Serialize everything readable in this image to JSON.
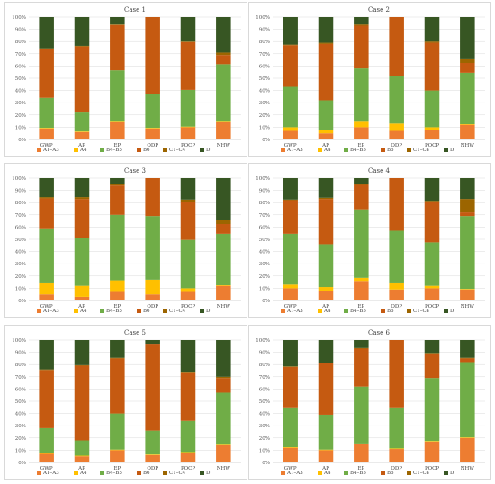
{
  "legend": [
    "A1–A3",
    "A4",
    "B4–B5",
    "B6",
    "C1–C4",
    "D"
  ],
  "colors": [
    "#ED7D31",
    "#FFC000",
    "#70AD47",
    "#C55A11",
    "#9C6500",
    "#375623"
  ],
  "chart_data": [
    {
      "type": "bar",
      "stacked": true,
      "percent": true,
      "title": "Case 1",
      "categories": [
        "GWP",
        "AP",
        "EP",
        "ODP",
        "POCP",
        "NHW"
      ],
      "ylim": [
        0,
        100
      ],
      "yticks": [
        "0%",
        "10%",
        "20%",
        "30%",
        "40%",
        "50%",
        "60%",
        "70%",
        "80%",
        "90%",
        "100%"
      ],
      "grid": true,
      "legend_position": "bottom",
      "series": [
        {
          "name": "A1–A3",
          "values": [
            9,
            6,
            14,
            9,
            10,
            14
          ]
        },
        {
          "name": "A4",
          "values": [
            0.5,
            0.5,
            0.5,
            0.5,
            0.5,
            0.5
          ]
        },
        {
          "name": "B4–B5",
          "values": [
            24.5,
            15.5,
            42,
            27.5,
            30,
            47
          ]
        },
        {
          "name": "B6",
          "values": [
            40,
            54,
            37,
            63,
            39,
            7.5
          ]
        },
        {
          "name": "C1–C4",
          "values": [
            0.5,
            0.5,
            0.5,
            0,
            0.5,
            2
          ]
        },
        {
          "name": "D",
          "values": [
            25.5,
            23.5,
            6,
            0,
            20,
            29
          ]
        }
      ]
    },
    {
      "type": "bar",
      "stacked": true,
      "percent": true,
      "title": "Case 2",
      "categories": [
        "GWP",
        "AP",
        "EP",
        "ODP",
        "POCP",
        "NHW"
      ],
      "ylim": [
        0,
        100
      ],
      "yticks": [
        "0%",
        "10%",
        "20%",
        "30%",
        "40%",
        "50%",
        "60%",
        "70%",
        "80%",
        "90%",
        "100%"
      ],
      "grid": true,
      "legend_position": "bottom",
      "series": [
        {
          "name": "A1–A3",
          "values": [
            7,
            5,
            10,
            7,
            8,
            12
          ]
        },
        {
          "name": "A4",
          "values": [
            3,
            2.5,
            4.5,
            6,
            2,
            0.5
          ]
        },
        {
          "name": "B4–B5",
          "values": [
            33,
            24.5,
            43.5,
            39,
            30,
            42
          ]
        },
        {
          "name": "B6",
          "values": [
            34,
            46,
            35,
            48,
            39,
            8
          ]
        },
        {
          "name": "C1–C4",
          "values": [
            0.5,
            1,
            1,
            0,
            1,
            3
          ]
        },
        {
          "name": "D",
          "values": [
            22.5,
            21,
            6,
            0,
            20,
            34.5
          ]
        }
      ]
    },
    {
      "type": "bar",
      "stacked": true,
      "percent": true,
      "title": "Case 3",
      "categories": [
        "GWP",
        "AP",
        "EP",
        "ODP",
        "POCP",
        "NHW"
      ],
      "ylim": [
        0,
        100
      ],
      "yticks": [
        "0%",
        "10%",
        "20%",
        "30%",
        "40%",
        "50%",
        "60%",
        "70%",
        "80%",
        "90%",
        "100%"
      ],
      "grid": true,
      "legend_position": "bottom",
      "series": [
        {
          "name": "A1–A3",
          "values": [
            5,
            3,
            7,
            5,
            7,
            12
          ]
        },
        {
          "name": "A4",
          "values": [
            9,
            9,
            9.5,
            12,
            3,
            0.5
          ]
        },
        {
          "name": "B4–B5",
          "values": [
            45,
            39,
            53.5,
            52,
            39.5,
            42
          ]
        },
        {
          "name": "B6",
          "values": [
            24.5,
            32,
            24,
            31,
            31,
            8
          ]
        },
        {
          "name": "C1–C4",
          "values": [
            1,
            1.5,
            1.5,
            0,
            2,
            3
          ]
        },
        {
          "name": "D",
          "values": [
            15.5,
            15.5,
            4.5,
            0,
            17.5,
            34.5
          ]
        }
      ]
    },
    {
      "type": "bar",
      "stacked": true,
      "percent": true,
      "title": "Case 4",
      "categories": [
        "GWP",
        "AP",
        "EP",
        "ODP",
        "POCP",
        "NHW"
      ],
      "ylim": [
        0,
        100
      ],
      "yticks": [
        "0%",
        "10%",
        "20%",
        "30%",
        "40%",
        "50%",
        "60%",
        "70%",
        "80%",
        "90%",
        "100%"
      ],
      "grid": true,
      "legend_position": "bottom",
      "series": [
        {
          "name": "A1–A3",
          "values": [
            10,
            8,
            16,
            9,
            10,
            9
          ]
        },
        {
          "name": "A4",
          "values": [
            3,
            3,
            2.5,
            5,
            2,
            0.5
          ]
        },
        {
          "name": "B4–B5",
          "values": [
            41.5,
            35,
            56,
            43,
            35.5,
            59.5
          ]
        },
        {
          "name": "B6",
          "values": [
            27.5,
            37,
            20,
            43,
            33,
            3
          ]
        },
        {
          "name": "C1–C4",
          "values": [
            0.5,
            1,
            0.5,
            0,
            1,
            11
          ]
        },
        {
          "name": "D",
          "values": [
            17.5,
            16,
            5,
            0,
            18.5,
            17
          ]
        }
      ]
    },
    {
      "type": "bar",
      "stacked": true,
      "percent": true,
      "title": "Case 5",
      "categories": [
        "GWP",
        "AP",
        "EP",
        "ODP",
        "POCP",
        "NHW"
      ],
      "ylim": [
        0,
        100
      ],
      "yticks": [
        "0%",
        "10%",
        "20%",
        "30%",
        "40%",
        "50%",
        "60%",
        "70%",
        "80%",
        "90%",
        "100%"
      ],
      "grid": true,
      "legend_position": "bottom",
      "series": [
        {
          "name": "A1–A3",
          "values": [
            7,
            5,
            10,
            6,
            8,
            14
          ]
        },
        {
          "name": "A4",
          "values": [
            0.5,
            0.5,
            0.5,
            0.5,
            0.5,
            0.5
          ]
        },
        {
          "name": "B4–B5",
          "values": [
            20.5,
            12.5,
            29.5,
            19.5,
            25.5,
            42.5
          ]
        },
        {
          "name": "B6",
          "values": [
            47.5,
            61,
            45,
            71,
            39,
            12
          ]
        },
        {
          "name": "C1–C4",
          "values": [
            0.5,
            0.5,
            0.5,
            0,
            0.5,
            1
          ]
        },
        {
          "name": "D",
          "values": [
            24,
            20.5,
            14.5,
            3,
            26.5,
            30
          ]
        }
      ]
    },
    {
      "type": "bar",
      "stacked": true,
      "percent": true,
      "title": "Case 6",
      "categories": [
        "GWP",
        "AP",
        "EP",
        "ODP",
        "POCP",
        "NHW"
      ],
      "ylim": [
        0,
        100
      ],
      "yticks": [
        "0%",
        "10%",
        "20%",
        "30%",
        "40%",
        "50%",
        "60%",
        "70%",
        "80%",
        "90%",
        "100%"
      ],
      "grid": true,
      "legend_position": "bottom",
      "series": [
        {
          "name": "A1–A3",
          "values": [
            12,
            10,
            15,
            11,
            17,
            20
          ]
        },
        {
          "name": "A4",
          "values": [
            0.5,
            0.5,
            0.5,
            0.5,
            0.5,
            0.5
          ]
        },
        {
          "name": "B4–B5",
          "values": [
            32.5,
            28.5,
            46.5,
            33.5,
            51.5,
            61.5
          ]
        },
        {
          "name": "B6",
          "values": [
            33,
            42,
            31,
            55,
            20,
            3
          ]
        },
        {
          "name": "C1–C4",
          "values": [
            0.5,
            0.5,
            0.5,
            0,
            0.5,
            0.5
          ]
        },
        {
          "name": "D",
          "values": [
            21.5,
            18.5,
            6.5,
            0,
            10.5,
            14.5
          ]
        }
      ]
    }
  ]
}
